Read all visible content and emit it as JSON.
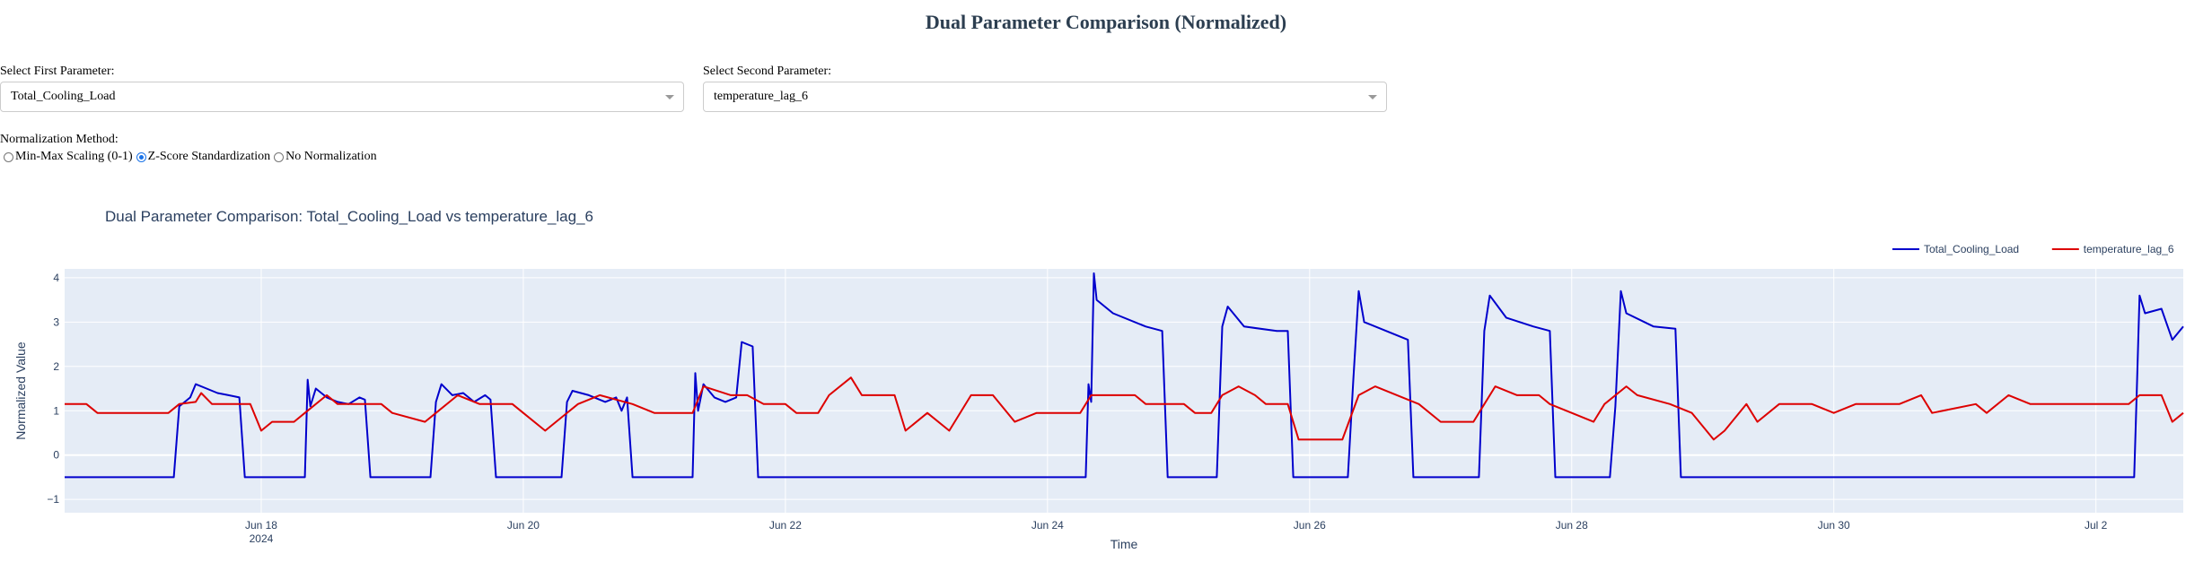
{
  "page": {
    "title": "Dual Parameter Comparison (Normalized)"
  },
  "controls": {
    "first_label": "Select First Parameter:",
    "first_value": "Total_Cooling_Load",
    "second_label": "Select Second Parameter:",
    "second_value": "temperature_lag_6",
    "norm_label": "Normalization Method:",
    "norm_options": [
      {
        "label": "Min-Max Scaling (0-1)",
        "checked": false
      },
      {
        "label": "Z-Score Standardization",
        "checked": true
      },
      {
        "label": "No Normalization",
        "checked": false
      }
    ]
  },
  "chart_data": {
    "type": "line",
    "title": "Dual Parameter Comparison: Total_Cooling_Load vs temperature_lag_6",
    "xlabel": "Time",
    "ylabel": "Normalized Value",
    "x_range": [
      "2024-06-16 12:00",
      "2024-07-02 16:00"
    ],
    "ylim": [
      -1.3,
      4.2
    ],
    "yticks": [
      -1,
      0,
      1,
      2,
      3,
      4
    ],
    "ytick_labels": [
      "−1",
      "0",
      "1",
      "2",
      "3",
      "4"
    ],
    "xticks": [
      {
        "date": "2024-06-18",
        "label": "Jun 18",
        "sublabel": "2024"
      },
      {
        "date": "2024-06-20",
        "label": "Jun 20",
        "sublabel": ""
      },
      {
        "date": "2024-06-22",
        "label": "Jun 22",
        "sublabel": ""
      },
      {
        "date": "2024-06-24",
        "label": "Jun 24",
        "sublabel": ""
      },
      {
        "date": "2024-06-26",
        "label": "Jun 26",
        "sublabel": ""
      },
      {
        "date": "2024-06-28",
        "label": "Jun 28",
        "sublabel": ""
      },
      {
        "date": "2024-06-30",
        "label": "Jun 30",
        "sublabel": ""
      },
      {
        "date": "2024-07-02",
        "label": "Jul 2",
        "sublabel": ""
      }
    ],
    "grid": true,
    "legend_position": "top-right",
    "series": [
      {
        "name": "Total_Cooling_Load",
        "color": "#0000cc",
        "points": [
          [
            "2024-06-16 12:00",
            -0.5
          ],
          [
            "2024-06-17 08:00",
            -0.5
          ],
          [
            "2024-06-17 09:00",
            1.1
          ],
          [
            "2024-06-17 10:00",
            1.2
          ],
          [
            "2024-06-17 11:00",
            1.3
          ],
          [
            "2024-06-17 12:00",
            1.6
          ],
          [
            "2024-06-17 14:00",
            1.5
          ],
          [
            "2024-06-17 16:00",
            1.4
          ],
          [
            "2024-06-17 18:00",
            1.35
          ],
          [
            "2024-06-17 20:00",
            1.3
          ],
          [
            "2024-06-17 21:00",
            -0.5
          ],
          [
            "2024-06-18 08:00",
            -0.5
          ],
          [
            "2024-06-18 08:30",
            1.7
          ],
          [
            "2024-06-18 09:00",
            1.1
          ],
          [
            "2024-06-18 10:00",
            1.5
          ],
          [
            "2024-06-18 12:00",
            1.3
          ],
          [
            "2024-06-18 14:00",
            1.2
          ],
          [
            "2024-06-18 16:00",
            1.15
          ],
          [
            "2024-06-18 18:00",
            1.3
          ],
          [
            "2024-06-18 19:00",
            1.25
          ],
          [
            "2024-06-18 20:00",
            -0.5
          ],
          [
            "2024-06-19 07:00",
            -0.5
          ],
          [
            "2024-06-19 08:00",
            1.2
          ],
          [
            "2024-06-19 09:00",
            1.6
          ],
          [
            "2024-06-19 11:00",
            1.35
          ],
          [
            "2024-06-19 13:00",
            1.4
          ],
          [
            "2024-06-19 15:00",
            1.2
          ],
          [
            "2024-06-19 17:00",
            1.35
          ],
          [
            "2024-06-19 18:00",
            1.25
          ],
          [
            "2024-06-19 19:00",
            -0.5
          ],
          [
            "2024-06-20 07:00",
            -0.5
          ],
          [
            "2024-06-20 08:00",
            1.2
          ],
          [
            "2024-06-20 09:00",
            1.45
          ],
          [
            "2024-06-20 12:00",
            1.35
          ],
          [
            "2024-06-20 15:00",
            1.2
          ],
          [
            "2024-06-20 17:00",
            1.3
          ],
          [
            "2024-06-20 18:00",
            1.0
          ],
          [
            "2024-06-20 19:00",
            1.3
          ],
          [
            "2024-06-20 20:00",
            -0.5
          ],
          [
            "2024-06-21 07:00",
            -0.5
          ],
          [
            "2024-06-21 07:30",
            1.85
          ],
          [
            "2024-06-21 08:00",
            1.0
          ],
          [
            "2024-06-21 09:00",
            1.6
          ],
          [
            "2024-06-21 11:00",
            1.3
          ],
          [
            "2024-06-21 13:00",
            1.2
          ],
          [
            "2024-06-21 15:00",
            1.3
          ],
          [
            "2024-06-21 16:00",
            2.55
          ],
          [
            "2024-06-21 18:00",
            2.45
          ],
          [
            "2024-06-21 19:00",
            -0.5
          ],
          [
            "2024-06-24 07:00",
            -0.5
          ],
          [
            "2024-06-24 07:30",
            1.6
          ],
          [
            "2024-06-24 08:00",
            1.2
          ],
          [
            "2024-06-24 08:30",
            4.1
          ],
          [
            "2024-06-24 09:00",
            3.5
          ],
          [
            "2024-06-24 12:00",
            3.2
          ],
          [
            "2024-06-24 18:00",
            2.9
          ],
          [
            "2024-06-24 21:00",
            2.8
          ],
          [
            "2024-06-24 22:00",
            -0.5
          ],
          [
            "2024-06-25 07:00",
            -0.5
          ],
          [
            "2024-06-25 08:00",
            2.9
          ],
          [
            "2024-06-25 09:00",
            3.35
          ],
          [
            "2024-06-25 12:00",
            2.9
          ],
          [
            "2024-06-25 18:00",
            2.8
          ],
          [
            "2024-06-25 20:00",
            2.8
          ],
          [
            "2024-06-25 21:00",
            -0.5
          ],
          [
            "2024-06-26 07:00",
            -0.5
          ],
          [
            "2024-06-26 08:00",
            1.7
          ],
          [
            "2024-06-26 09:00",
            3.7
          ],
          [
            "2024-06-26 10:00",
            3.0
          ],
          [
            "2024-06-26 14:00",
            2.8
          ],
          [
            "2024-06-26 18:00",
            2.6
          ],
          [
            "2024-06-26 19:00",
            -0.5
          ],
          [
            "2024-06-27 07:00",
            -0.5
          ],
          [
            "2024-06-27 08:00",
            2.8
          ],
          [
            "2024-06-27 09:00",
            3.6
          ],
          [
            "2024-06-27 12:00",
            3.1
          ],
          [
            "2024-06-27 17:00",
            2.9
          ],
          [
            "2024-06-27 20:00",
            2.8
          ],
          [
            "2024-06-27 21:00",
            -0.5
          ],
          [
            "2024-06-28 07:00",
            -0.5
          ],
          [
            "2024-06-28 08:00",
            1.1
          ],
          [
            "2024-06-28 09:00",
            3.7
          ],
          [
            "2024-06-28 10:00",
            3.2
          ],
          [
            "2024-06-28 15:00",
            2.9
          ],
          [
            "2024-06-28 19:00",
            2.85
          ],
          [
            "2024-06-28 20:00",
            -0.5
          ],
          [
            "2024-07-02 07:00",
            -0.5
          ],
          [
            "2024-07-02 07:30",
            1.5
          ],
          [
            "2024-07-02 08:00",
            3.6
          ],
          [
            "2024-07-02 09:00",
            3.2
          ],
          [
            "2024-07-02 12:00",
            3.3
          ],
          [
            "2024-07-02 14:00",
            2.6
          ],
          [
            "2024-07-02 16:00",
            2.9
          ]
        ]
      },
      {
        "name": "temperature_lag_6",
        "color": "#dd0000",
        "points": [
          [
            "2024-06-16 12:00",
            1.15
          ],
          [
            "2024-06-16 16:00",
            1.15
          ],
          [
            "2024-06-16 18:00",
            0.95
          ],
          [
            "2024-06-17 07:00",
            0.95
          ],
          [
            "2024-06-17 09:00",
            1.15
          ],
          [
            "2024-06-17 12:00",
            1.2
          ],
          [
            "2024-06-17 13:00",
            1.4
          ],
          [
            "2024-06-17 15:00",
            1.15
          ],
          [
            "2024-06-17 22:00",
            1.15
          ],
          [
            "2024-06-18 00:00",
            0.55
          ],
          [
            "2024-06-18 02:00",
            0.75
          ],
          [
            "2024-06-18 06:00",
            0.75
          ],
          [
            "2024-06-18 08:00",
            0.95
          ],
          [
            "2024-06-18 12:00",
            1.35
          ],
          [
            "2024-06-18 14:00",
            1.15
          ],
          [
            "2024-06-18 22:00",
            1.15
          ],
          [
            "2024-06-19 00:00",
            0.95
          ],
          [
            "2024-06-19 06:00",
            0.75
          ],
          [
            "2024-06-19 08:00",
            0.95
          ],
          [
            "2024-06-19 12:00",
            1.35
          ],
          [
            "2024-06-19 16:00",
            1.15
          ],
          [
            "2024-06-19 22:00",
            1.15
          ],
          [
            "2024-06-20 00:00",
            0.95
          ],
          [
            "2024-06-20 04:00",
            0.55
          ],
          [
            "2024-06-20 06:00",
            0.75
          ],
          [
            "2024-06-20 10:00",
            1.15
          ],
          [
            "2024-06-20 14:00",
            1.35
          ],
          [
            "2024-06-20 20:00",
            1.15
          ],
          [
            "2024-06-21 00:00",
            0.95
          ],
          [
            "2024-06-21 07:00",
            0.95
          ],
          [
            "2024-06-21 09:00",
            1.55
          ],
          [
            "2024-06-21 14:00",
            1.35
          ],
          [
            "2024-06-21 17:00",
            1.35
          ],
          [
            "2024-06-21 20:00",
            1.15
          ],
          [
            "2024-06-22 00:00",
            1.15
          ],
          [
            "2024-06-22 02:00",
            0.95
          ],
          [
            "2024-06-22 06:00",
            0.95
          ],
          [
            "2024-06-22 08:00",
            1.35
          ],
          [
            "2024-06-22 12:00",
            1.75
          ],
          [
            "2024-06-22 14:00",
            1.35
          ],
          [
            "2024-06-22 20:00",
            1.35
          ],
          [
            "2024-06-22 22:00",
            0.55
          ],
          [
            "2024-06-23 02:00",
            0.95
          ],
          [
            "2024-06-23 06:00",
            0.55
          ],
          [
            "2024-06-23 10:00",
            1.35
          ],
          [
            "2024-06-23 14:00",
            1.35
          ],
          [
            "2024-06-23 18:00",
            0.75
          ],
          [
            "2024-06-23 22:00",
            0.95
          ],
          [
            "2024-06-24 06:00",
            0.95
          ],
          [
            "2024-06-24 08:00",
            1.35
          ],
          [
            "2024-06-24 16:00",
            1.35
          ],
          [
            "2024-06-24 18:00",
            1.15
          ],
          [
            "2024-06-25 01:00",
            1.15
          ],
          [
            "2024-06-25 03:00",
            0.95
          ],
          [
            "2024-06-25 06:00",
            0.95
          ],
          [
            "2024-06-25 08:00",
            1.35
          ],
          [
            "2024-06-25 11:00",
            1.55
          ],
          [
            "2024-06-25 14:00",
            1.35
          ],
          [
            "2024-06-25 16:00",
            1.15
          ],
          [
            "2024-06-25 20:00",
            1.15
          ],
          [
            "2024-06-25 22:00",
            0.35
          ],
          [
            "2024-06-26 06:00",
            0.35
          ],
          [
            "2024-06-26 09:00",
            1.35
          ],
          [
            "2024-06-26 12:00",
            1.55
          ],
          [
            "2024-06-26 16:00",
            1.35
          ],
          [
            "2024-06-26 20:00",
            1.15
          ],
          [
            "2024-06-27 00:00",
            0.75
          ],
          [
            "2024-06-27 06:00",
            0.75
          ],
          [
            "2024-06-27 10:00",
            1.55
          ],
          [
            "2024-06-27 14:00",
            1.35
          ],
          [
            "2024-06-27 18:00",
            1.35
          ],
          [
            "2024-06-27 20:00",
            1.15
          ],
          [
            "2024-06-28 00:00",
            0.95
          ],
          [
            "2024-06-28 04:00",
            0.75
          ],
          [
            "2024-06-28 06:00",
            1.15
          ],
          [
            "2024-06-28 10:00",
            1.55
          ],
          [
            "2024-06-28 12:00",
            1.35
          ],
          [
            "2024-06-28 18:00",
            1.15
          ],
          [
            "2024-06-28 22:00",
            0.95
          ],
          [
            "2024-06-29 02:00",
            0.35
          ],
          [
            "2024-06-29 04:00",
            0.55
          ],
          [
            "2024-06-29 08:00",
            1.15
          ],
          [
            "2024-06-29 10:00",
            0.75
          ],
          [
            "2024-06-29 14:00",
            1.15
          ],
          [
            "2024-06-29 20:00",
            1.15
          ],
          [
            "2024-06-30 00:00",
            0.95
          ],
          [
            "2024-06-30 04:00",
            1.15
          ],
          [
            "2024-06-30 12:00",
            1.15
          ],
          [
            "2024-06-30 16:00",
            1.35
          ],
          [
            "2024-06-30 18:00",
            0.95
          ],
          [
            "2024-07-01 02:00",
            1.15
          ],
          [
            "2024-07-01 04:00",
            0.95
          ],
          [
            "2024-07-01 08:00",
            1.35
          ],
          [
            "2024-07-01 12:00",
            1.15
          ],
          [
            "2024-07-01 18:00",
            1.15
          ],
          [
            "2024-07-02 02:00",
            1.15
          ],
          [
            "2024-07-02 06:00",
            1.15
          ],
          [
            "2024-07-02 08:00",
            1.35
          ],
          [
            "2024-07-02 12:00",
            1.35
          ],
          [
            "2024-07-02 14:00",
            0.75
          ],
          [
            "2024-07-02 16:00",
            0.95
          ]
        ]
      }
    ]
  }
}
